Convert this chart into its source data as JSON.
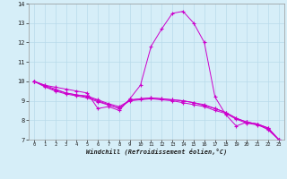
{
  "xlabel": "Windchill (Refroidissement éolien,°C)",
  "ylabel": "",
  "bg_color": "#d6eef8",
  "grid_color": "#b8daea",
  "line_color": "#cc00cc",
  "hours": [
    0,
    1,
    2,
    3,
    4,
    5,
    6,
    7,
    8,
    9,
    10,
    11,
    12,
    13,
    14,
    15,
    16,
    17,
    18,
    19,
    20,
    21,
    22,
    23
  ],
  "series1": [
    10.0,
    9.8,
    9.7,
    9.6,
    9.5,
    9.4,
    8.6,
    8.7,
    8.5,
    9.1,
    9.8,
    11.8,
    12.7,
    13.5,
    13.6,
    13.0,
    12.0,
    9.2,
    8.3,
    7.7,
    7.9,
    7.8,
    7.5,
    7.0
  ],
  "series2": [
    10.0,
    9.8,
    9.6,
    9.4,
    9.3,
    9.2,
    9.0,
    8.8,
    8.6,
    9.05,
    9.1,
    9.15,
    9.1,
    9.05,
    9.0,
    8.9,
    8.8,
    8.6,
    8.4,
    8.1,
    7.9,
    7.8,
    7.6,
    7.0
  ],
  "series3": [
    10.0,
    9.72,
    9.5,
    9.35,
    9.25,
    9.15,
    8.95,
    8.78,
    8.62,
    9.0,
    9.05,
    9.1,
    9.05,
    9.0,
    8.9,
    8.8,
    8.7,
    8.5,
    8.35,
    8.05,
    7.85,
    7.75,
    7.55,
    7.0
  ],
  "series4": [
    10.0,
    9.75,
    9.55,
    9.4,
    9.3,
    9.25,
    9.05,
    8.85,
    8.7,
    9.02,
    9.1,
    9.15,
    9.1,
    9.05,
    9.0,
    8.9,
    8.75,
    8.6,
    8.4,
    8.1,
    7.9,
    7.8,
    7.6,
    7.0
  ],
  "ylim": [
    7,
    14
  ],
  "yticks": [
    7,
    8,
    9,
    10,
    11,
    12,
    13,
    14
  ],
  "xticks": [
    0,
    1,
    2,
    3,
    4,
    5,
    6,
    7,
    8,
    9,
    10,
    11,
    12,
    13,
    14,
    15,
    16,
    17,
    18,
    19,
    20,
    21,
    22,
    23
  ]
}
